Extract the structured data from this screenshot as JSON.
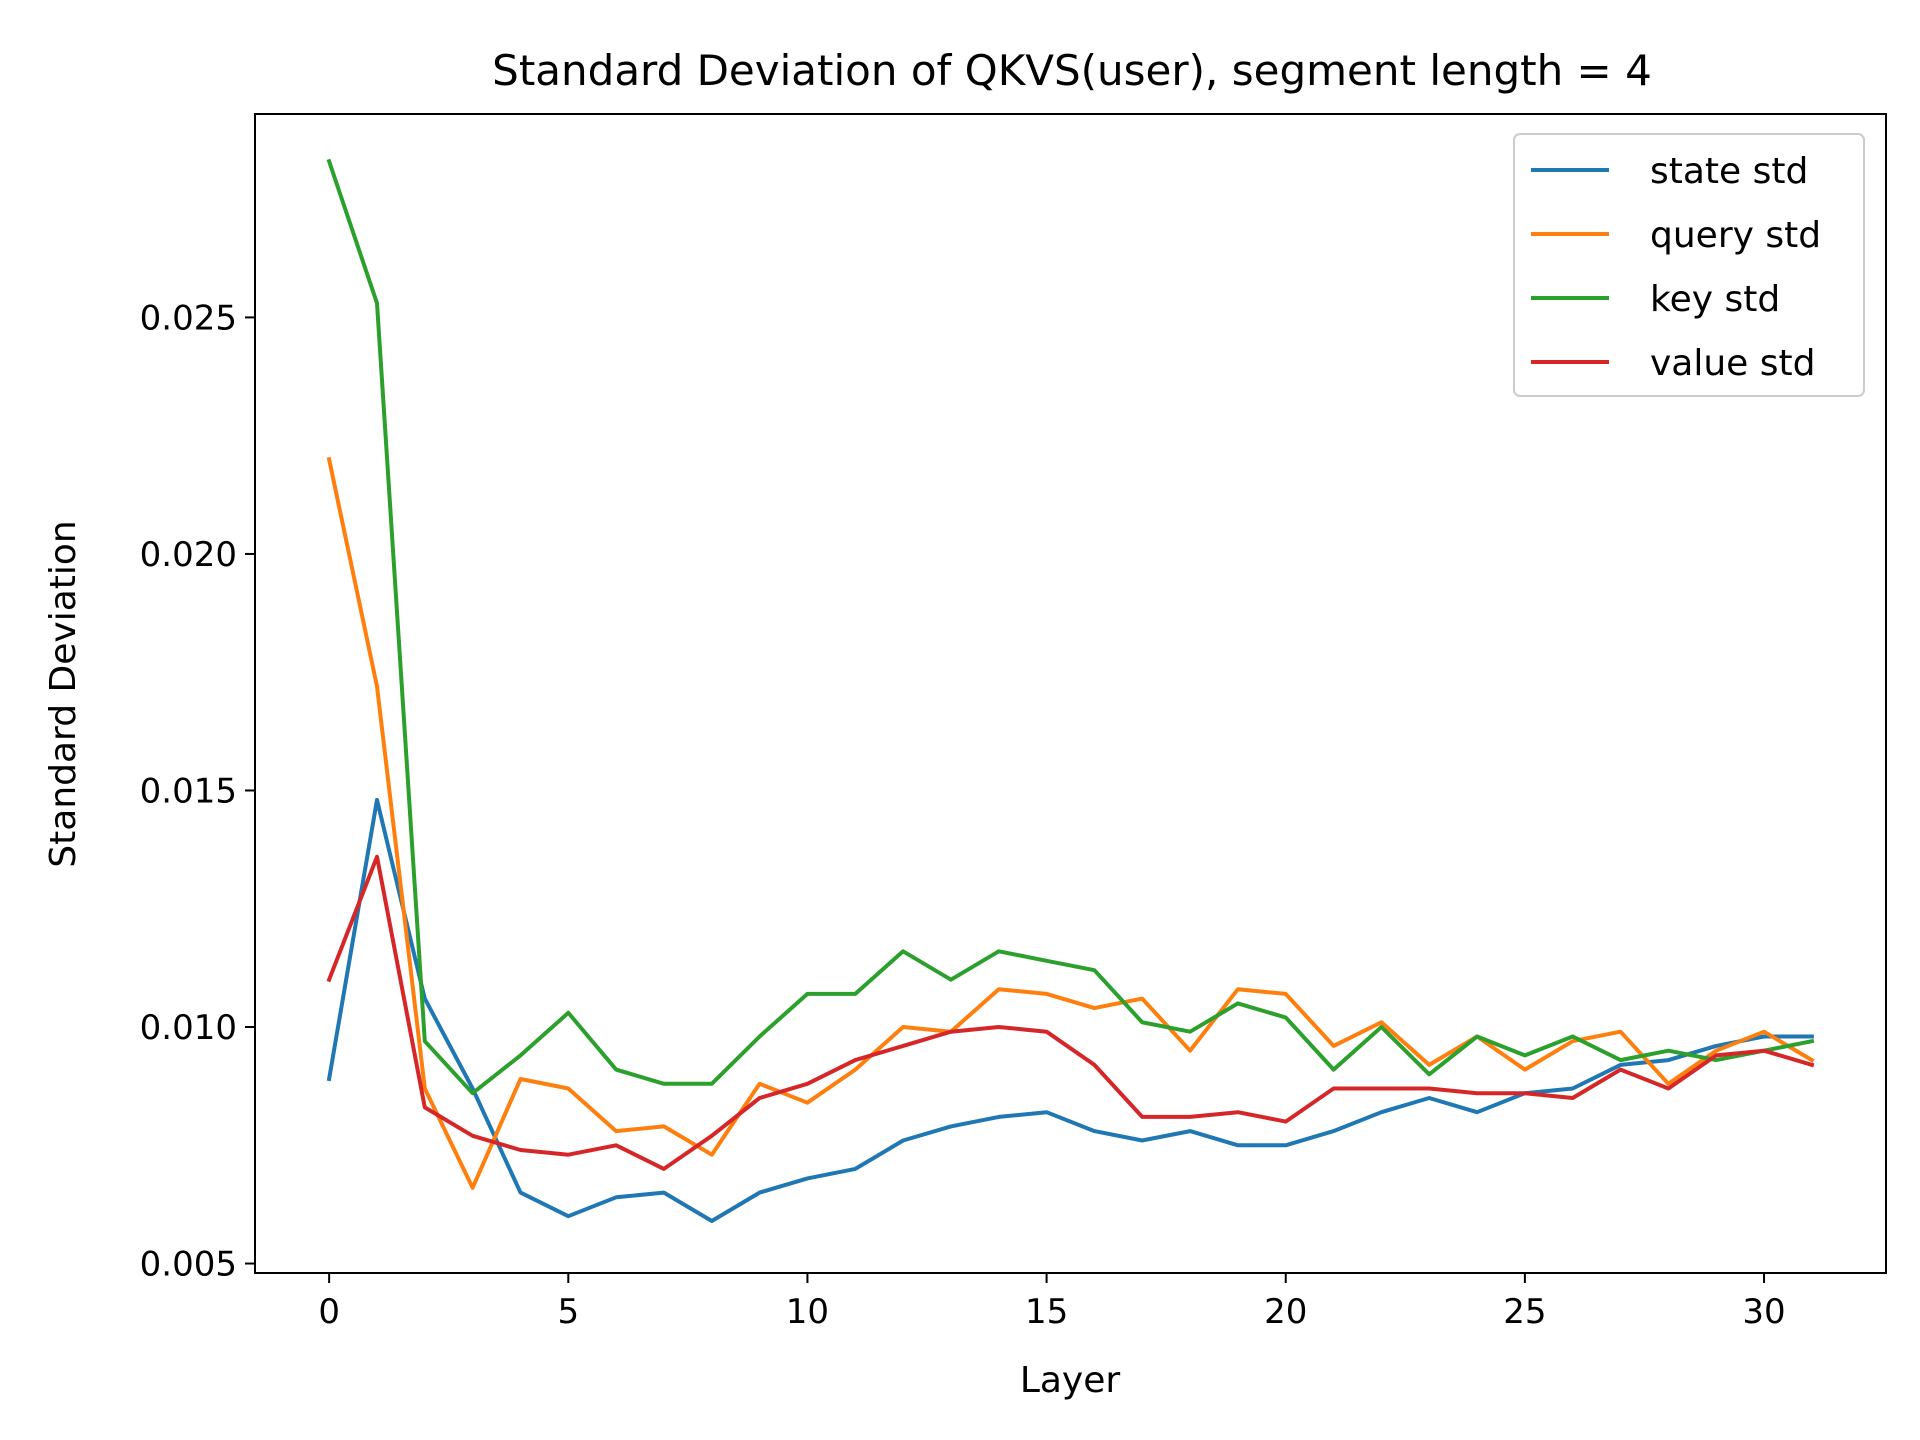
{
  "chart_data": {
    "type": "line",
    "title": "Standard Deviation of QKVS(user), segment length = 4",
    "xlabel": "Layer",
    "ylabel": "Standard Deviation",
    "xlim": [
      -1.55,
      32.55
    ],
    "ylim": [
      0.0048,
      0.0293
    ],
    "xticks": [
      0,
      5,
      10,
      15,
      20,
      25,
      30
    ],
    "xtick_labels": [
      "0",
      "5",
      "10",
      "15",
      "20",
      "25",
      "30"
    ],
    "yticks": [
      0.005,
      0.01,
      0.015,
      0.02,
      0.025
    ],
    "ytick_labels": [
      "0.005",
      "0.010",
      "0.015",
      "0.020",
      "0.025"
    ],
    "grid": false,
    "legend_position": "top-right",
    "x": [
      0,
      1,
      2,
      3,
      4,
      5,
      6,
      7,
      8,
      9,
      10,
      11,
      12,
      13,
      14,
      15,
      16,
      17,
      18,
      19,
      20,
      21,
      22,
      23,
      24,
      25,
      26,
      27,
      28,
      29,
      30,
      31
    ],
    "series": [
      {
        "name": "state std",
        "color": "#1f77b4",
        "values": [
          0.0089,
          0.0148,
          0.0106,
          0.0087,
          0.0065,
          0.006,
          0.0064,
          0.0065,
          0.0059,
          0.0065,
          0.0068,
          0.007,
          0.0076,
          0.0079,
          0.0081,
          0.0082,
          0.0078,
          0.0076,
          0.0078,
          0.0075,
          0.0075,
          0.0078,
          0.0082,
          0.0085,
          0.0082,
          0.0086,
          0.0087,
          0.0092,
          0.0093,
          0.0096,
          0.0098,
          0.0098
        ]
      },
      {
        "name": "query std",
        "color": "#ff7f0e",
        "values": [
          0.022,
          0.0172,
          0.0087,
          0.0066,
          0.0089,
          0.0087,
          0.0078,
          0.0079,
          0.0073,
          0.0088,
          0.0084,
          0.0091,
          0.01,
          0.0099,
          0.0108,
          0.0107,
          0.0104,
          0.0106,
          0.0095,
          0.0108,
          0.0107,
          0.0096,
          0.0101,
          0.0092,
          0.0098,
          0.0091,
          0.0097,
          0.0099,
          0.0088,
          0.0095,
          0.0099,
          0.0093
        ]
      },
      {
        "name": "key std",
        "color": "#2ca02c",
        "values": [
          0.0283,
          0.0253,
          0.0097,
          0.0086,
          0.0094,
          0.0103,
          0.0091,
          0.0088,
          0.0088,
          0.0098,
          0.0107,
          0.0107,
          0.0116,
          0.011,
          0.0116,
          0.0114,
          0.0112,
          0.0101,
          0.0099,
          0.0105,
          0.0102,
          0.0091,
          0.01,
          0.009,
          0.0098,
          0.0094,
          0.0098,
          0.0093,
          0.0095,
          0.0093,
          0.0095,
          0.0097
        ]
      },
      {
        "name": "value std",
        "color": "#d62728",
        "values": [
          0.011,
          0.0136,
          0.0083,
          0.0077,
          0.0074,
          0.0073,
          0.0075,
          0.007,
          0.0077,
          0.0085,
          0.0088,
          0.0093,
          0.0096,
          0.0099,
          0.01,
          0.0099,
          0.0092,
          0.0081,
          0.0081,
          0.0082,
          0.008,
          0.0087,
          0.0087,
          0.0087,
          0.0086,
          0.0086,
          0.0085,
          0.0091,
          0.0087,
          0.0094,
          0.0095,
          0.0092
        ]
      }
    ]
  }
}
